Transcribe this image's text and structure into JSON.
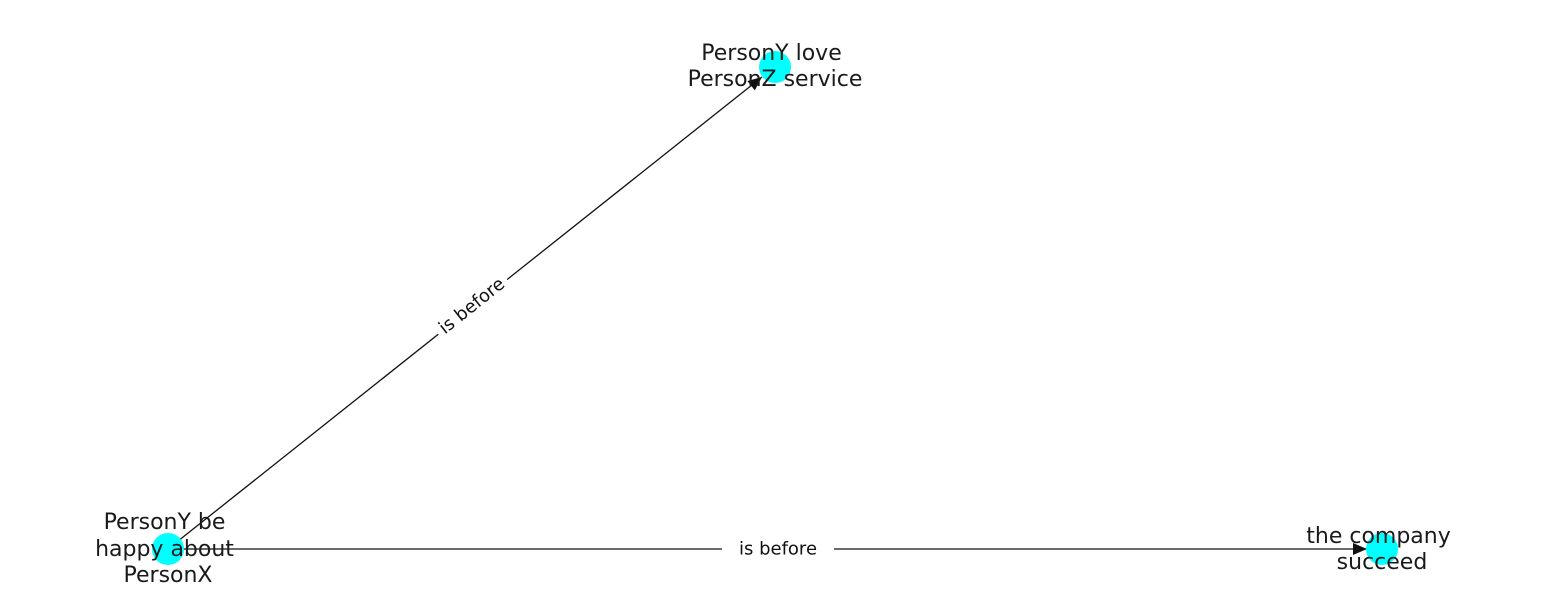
{
  "graph": {
    "node_color": "#00ffff",
    "edge_color": "#111111",
    "nodes": [
      {
        "id": "n0",
        "label_lines": [
          "PersonY be",
          "happy about",
          "PersonX"
        ]
      },
      {
        "id": "n1",
        "label_lines": [
          "PersonY love",
          "PersonZ service"
        ]
      },
      {
        "id": "n2",
        "label_lines": [
          "the company",
          "succeed"
        ]
      }
    ],
    "edges": [
      {
        "source": "n0",
        "target": "n1",
        "label": "is before"
      },
      {
        "source": "n0",
        "target": "n2",
        "label": "is before"
      }
    ]
  }
}
